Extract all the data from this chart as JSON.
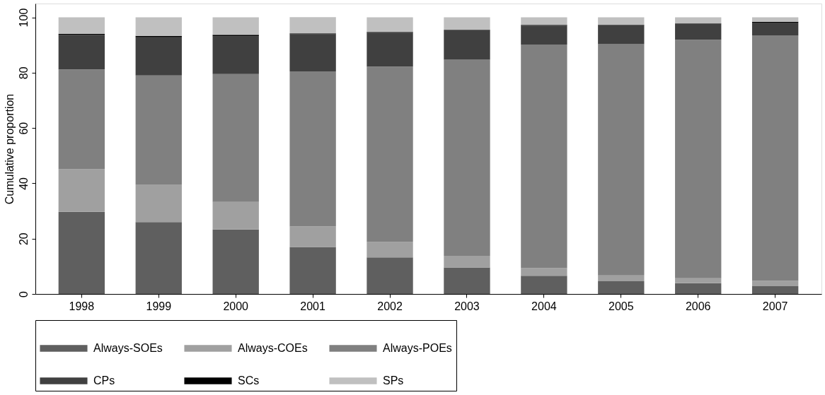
{
  "chart_data": {
    "type": "bar",
    "stacked": true,
    "ylabel": "Cumulative proportion",
    "categories": [
      "1998",
      "1999",
      "2000",
      "2001",
      "2002",
      "2003",
      "2004",
      "2005",
      "2006",
      "2007"
    ],
    "series": [
      {
        "name": "Always-SOEs",
        "color": "#5f5f5f",
        "values": [
          29.7,
          26.0,
          23.3,
          17.0,
          13.2,
          9.6,
          6.6,
          4.6,
          3.9,
          2.8
        ]
      },
      {
        "name": "Always-COEs",
        "color": "#a0a0a0",
        "values": [
          15.4,
          13.6,
          10.0,
          7.4,
          5.6,
          4.2,
          2.7,
          2.1,
          1.8,
          1.9
        ]
      },
      {
        "name": "Always-POEs",
        "color": "#808080",
        "values": [
          36.1,
          39.4,
          46.2,
          56.1,
          63.4,
          70.9,
          80.9,
          83.6,
          86.2,
          88.7
        ]
      },
      {
        "name": "CPs",
        "color": "#404040",
        "values": [
          12.4,
          13.8,
          13.6,
          13.4,
          12.2,
          10.6,
          6.8,
          6.8,
          5.7,
          4.7
        ]
      },
      {
        "name": "SCs",
        "color": "#000000",
        "values": [
          0.4,
          0.5,
          0.6,
          0.3,
          0.3,
          0.2,
          0.3,
          0.2,
          0.2,
          0.3
        ]
      },
      {
        "name": "SPs",
        "color": "#c0c0c0",
        "values": [
          6.0,
          6.7,
          6.3,
          5.9,
          5.3,
          4.5,
          2.7,
          2.7,
          2.2,
          1.6
        ]
      }
    ],
    "ylim": [
      0,
      105
    ],
    "yticks": [
      0,
      20,
      40,
      60,
      80,
      100
    ],
    "grid": false,
    "legend": "bottom"
  }
}
